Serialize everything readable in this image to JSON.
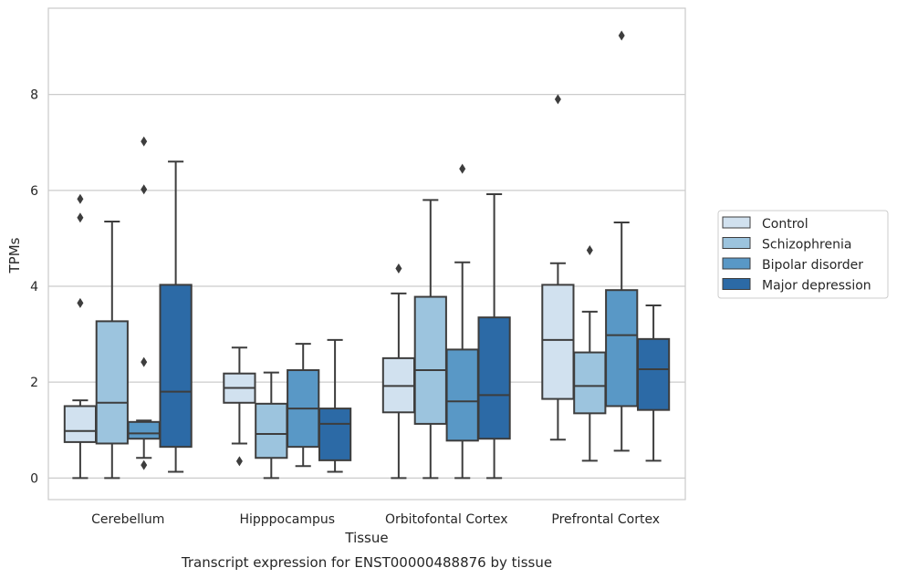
{
  "chart_data": {
    "type": "box",
    "title": "",
    "caption": "Transcript expression for ENST00000488876 by tissue",
    "xlabel": "Tissue",
    "ylabel": "TPMs",
    "ylim": [
      -0.45,
      9.8
    ],
    "yticks": [
      0,
      2,
      4,
      6,
      8
    ],
    "grid": true,
    "legend": "outside-right",
    "categories": [
      "Cerebellum",
      "Hipppocampus",
      "Orbitofontal Cortex",
      "Prefrontal Cortex"
    ],
    "series": [
      {
        "name": "Control",
        "color": "#d1e1ef",
        "boxes": [
          {
            "whislo": 0.0,
            "q1": 0.75,
            "med": 0.98,
            "q3": 1.5,
            "whishi": 1.62,
            "fliers": [
              3.65,
              5.43,
              5.82
            ]
          },
          {
            "whislo": 0.72,
            "q1": 1.57,
            "med": 1.88,
            "q3": 2.18,
            "whishi": 2.72,
            "fliers": [
              0.35
            ]
          },
          {
            "whislo": 0.0,
            "q1": 1.37,
            "med": 1.92,
            "q3": 2.5,
            "whishi": 3.85,
            "fliers": [
              4.37
            ]
          },
          {
            "whislo": 0.8,
            "q1": 1.65,
            "med": 2.88,
            "q3": 4.03,
            "whishi": 4.48,
            "fliers": [
              7.9
            ]
          }
        ]
      },
      {
        "name": "Schizophrenia",
        "color": "#9cc4de",
        "boxes": [
          {
            "whislo": 0.0,
            "q1": 0.72,
            "med": 1.57,
            "q3": 3.27,
            "whishi": 5.35,
            "fliers": []
          },
          {
            "whislo": 0.0,
            "q1": 0.42,
            "med": 0.92,
            "q3": 1.55,
            "whishi": 2.2,
            "fliers": []
          },
          {
            "whislo": 0.0,
            "q1": 1.13,
            "med": 2.25,
            "q3": 3.78,
            "whishi": 5.8,
            "fliers": []
          },
          {
            "whislo": 0.36,
            "q1": 1.35,
            "med": 1.92,
            "q3": 2.62,
            "whishi": 3.47,
            "fliers": [
              4.75
            ]
          }
        ]
      },
      {
        "name": "Bipolar disorder",
        "color": "#5998c6",
        "boxes": [
          {
            "whislo": 0.42,
            "q1": 0.82,
            "med": 0.93,
            "q3": 1.17,
            "whishi": 1.2,
            "fliers": [
              0.27,
              2.42,
              6.02,
              7.02
            ]
          },
          {
            "whislo": 0.25,
            "q1": 0.65,
            "med": 1.45,
            "q3": 2.25,
            "whishi": 2.8,
            "fliers": []
          },
          {
            "whislo": 0.0,
            "q1": 0.78,
            "med": 1.6,
            "q3": 2.68,
            "whishi": 4.5,
            "fliers": [
              6.45
            ]
          },
          {
            "whislo": 0.57,
            "q1": 1.5,
            "med": 2.98,
            "q3": 3.92,
            "whishi": 5.33,
            "fliers": [
              9.23
            ]
          }
        ]
      },
      {
        "name": "Major depression",
        "color": "#2c6aa6",
        "boxes": [
          {
            "whislo": 0.13,
            "q1": 0.65,
            "med": 1.8,
            "q3": 4.03,
            "whishi": 6.6,
            "fliers": []
          },
          {
            "whislo": 0.13,
            "q1": 0.37,
            "med": 1.13,
            "q3": 1.45,
            "whishi": 2.88,
            "fliers": []
          },
          {
            "whislo": 0.0,
            "q1": 0.82,
            "med": 1.73,
            "q3": 3.35,
            "whishi": 5.92,
            "fliers": []
          },
          {
            "whislo": 0.36,
            "q1": 1.42,
            "med": 2.27,
            "q3": 2.9,
            "whishi": 3.6,
            "fliers": []
          }
        ]
      }
    ]
  }
}
